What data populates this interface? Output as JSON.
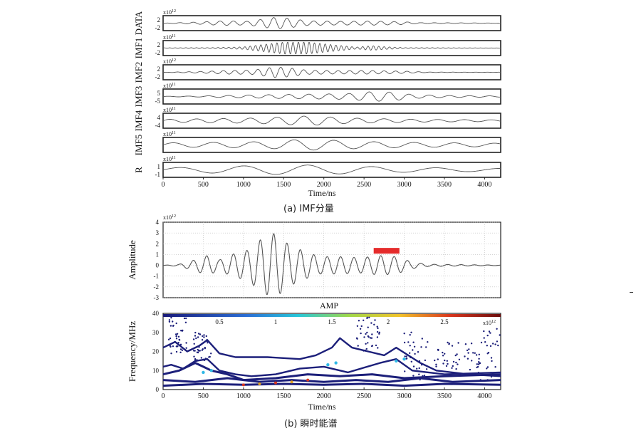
{
  "caption_a": "(a)  IMF分量",
  "caption_b": "(b)  瞬时能谱",
  "chart_data": [
    {
      "type": "line",
      "panel": "a",
      "xlabel": "Time/ns",
      "xlim": [
        0,
        4200
      ],
      "xticks": [
        0,
        500,
        1000,
        1500,
        2000,
        2500,
        3000,
        3500,
        4000
      ],
      "rows": [
        {
          "label": "DATA",
          "scale": "x10^12",
          "ylim": [
            -3,
            3
          ],
          "ticks": [
            "2",
            "-2"
          ],
          "envelope": [
            [
              0,
              0
            ],
            [
              450,
              0.5
            ],
            [
              750,
              1.0
            ],
            [
              1050,
              0.8
            ],
            [
              1400,
              2.6
            ],
            [
              1550,
              2.2
            ],
            [
              1800,
              1.0
            ],
            [
              2200,
              0.8
            ],
            [
              2600,
              0.9
            ],
            [
              3000,
              0.6
            ],
            [
              3200,
              0.2
            ],
            [
              4200,
              0.05
            ]
          ],
          "freq": 0.012
        },
        {
          "label": "IMF1",
          "scale": "x10^11",
          "ylim": [
            -3,
            3
          ],
          "ticks": [
            "2",
            "-2"
          ],
          "envelope": [
            [
              0,
              0.1
            ],
            [
              600,
              0.2
            ],
            [
              1000,
              0.5
            ],
            [
              1300,
              1.8
            ],
            [
              1500,
              2.6
            ],
            [
              1800,
              2.6
            ],
            [
              2100,
              1.5
            ],
            [
              2400,
              0.4
            ],
            [
              2600,
              1.0
            ],
            [
              2750,
              0.6
            ],
            [
              3000,
              0.2
            ],
            [
              4200,
              0.05
            ]
          ],
          "freq": 0.03
        },
        {
          "label": "IMF2",
          "scale": "x10^12",
          "ylim": [
            -3,
            3
          ],
          "ticks": [
            "2",
            "-2"
          ],
          "envelope": [
            [
              0,
              0
            ],
            [
              500,
              0.4
            ],
            [
              800,
              0.8
            ],
            [
              1100,
              0.9
            ],
            [
              1400,
              2.4
            ],
            [
              1550,
              2.0
            ],
            [
              1800,
              0.9
            ],
            [
              2200,
              0.7
            ],
            [
              2500,
              0.8
            ],
            [
              3000,
              0.5
            ],
            [
              3300,
              0.1
            ],
            [
              4200,
              0.05
            ]
          ],
          "freq": 0.014
        },
        {
          "label": "IMF3",
          "scale": "x10^11",
          "ylim": [
            -7,
            7
          ],
          "ticks": [
            "5",
            "-5"
          ],
          "envelope": [
            [
              0,
              0.2
            ],
            [
              500,
              0.6
            ],
            [
              900,
              1.2
            ],
            [
              1400,
              2.0
            ],
            [
              1900,
              2.5
            ],
            [
              2300,
              3.0
            ],
            [
              2600,
              5.0
            ],
            [
              2850,
              4.5
            ],
            [
              3100,
              2.0
            ],
            [
              3500,
              1.0
            ],
            [
              4200,
              0.6
            ]
          ],
          "freq": 0.008
        },
        {
          "label": "IMF4",
          "scale": "x10^11",
          "ylim": [
            -5,
            5
          ],
          "ticks": [
            "4",
            "-4"
          ],
          "envelope": [
            [
              0,
              1.0
            ],
            [
              600,
              1.5
            ],
            [
              1000,
              1.8
            ],
            [
              1400,
              2.5
            ],
            [
              1800,
              3.5
            ],
            [
              2000,
              3.0
            ],
            [
              2300,
              2.0
            ],
            [
              2700,
              1.5
            ],
            [
              3200,
              1.0
            ],
            [
              4200,
              0.6
            ]
          ],
          "freq": 0.006
        },
        {
          "label": "IMF5",
          "scale": "x10^11",
          "ylim": [
            -2,
            2
          ],
          "ticks": [],
          "envelope": [
            [
              0,
              0.6
            ],
            [
              800,
              0.8
            ],
            [
              1300,
              1.0
            ],
            [
              1700,
              1.6
            ],
            [
              2100,
              1.4
            ],
            [
              2500,
              1.0
            ],
            [
              3200,
              0.7
            ],
            [
              4200,
              0.5
            ]
          ],
          "freq": 0.004
        },
        {
          "label": "R",
          "scale": "x10^11",
          "ylim": [
            -1.4,
            1.4
          ],
          "ticks": [
            "1",
            "-1"
          ],
          "envelope": [
            [
              0,
              0.4
            ],
            [
              700,
              0.7
            ],
            [
              1200,
              0.9
            ],
            [
              1800,
              1.0
            ],
            [
              2300,
              0.8
            ],
            [
              3000,
              0.5
            ],
            [
              4200,
              0.3
            ]
          ],
          "freq": 0.0025
        }
      ]
    },
    {
      "type": "line",
      "panel": "b-top",
      "ylabel": "Amplitude",
      "scale": "x10^12",
      "xlim": [
        0,
        4200
      ],
      "ylim": [
        -3,
        4
      ],
      "yticks": [
        4,
        3,
        2,
        1,
        0,
        -1,
        -2,
        -3
      ],
      "marker_color": "#e52b2b",
      "marker_range": [
        2620,
        2940
      ],
      "marker_y": 1.35,
      "envelope": [
        [
          0,
          0
        ],
        [
          200,
          0.1
        ],
        [
          350,
          0.4
        ],
        [
          550,
          0.9
        ],
        [
          700,
          0.5
        ],
        [
          850,
          1.0
        ],
        [
          1050,
          1.4
        ],
        [
          1250,
          2.6
        ],
        [
          1400,
          3.0
        ],
        [
          1550,
          2.0
        ],
        [
          1750,
          1.3
        ],
        [
          1950,
          0.8
        ],
        [
          2200,
          0.8
        ],
        [
          2450,
          0.7
        ],
        [
          2700,
          0.9
        ],
        [
          2900,
          0.8
        ],
        [
          3100,
          0.3
        ],
        [
          3300,
          0.1
        ],
        [
          4200,
          0.02
        ]
      ]
    },
    {
      "type": "scatter",
      "panel": "b-bottom",
      "title": "AMP",
      "ylabel": "Frequency/MHz",
      "xlabel": "Time/ns",
      "xlim": [
        0,
        4200
      ],
      "ylim": [
        0,
        40
      ],
      "yticks": [
        0,
        10,
        20,
        30,
        40
      ],
      "xticks": [
        0,
        500,
        1000,
        1500,
        2000,
        2500,
        3000,
        3500,
        4000
      ],
      "colorbar": {
        "range": [
          0,
          3
        ],
        "ticks": [
          "0.5",
          "1",
          "1.5",
          "2",
          "2.5"
        ],
        "scale": "x10^12"
      },
      "tracks": [
        {
          "points": [
            [
              0,
              2
            ],
            [
              500,
              3
            ],
            [
              1000,
              2.5
            ],
            [
              1500,
              3
            ],
            [
              2000,
              2.5
            ],
            [
              2500,
              3
            ],
            [
              3000,
              2
            ],
            [
              3500,
              3
            ],
            [
              4200,
              2.5
            ]
          ]
        },
        {
          "points": [
            [
              0,
              5
            ],
            [
              400,
              4
            ],
            [
              800,
              6
            ],
            [
              1200,
              4
            ],
            [
              1600,
              5
            ],
            [
              2000,
              4
            ],
            [
              2400,
              5
            ],
            [
              2800,
              4
            ],
            [
              3200,
              6
            ],
            [
              3600,
              4
            ],
            [
              4200,
              5
            ]
          ]
        },
        {
          "points": [
            [
              0,
              8
            ],
            [
              200,
              10
            ],
            [
              400,
              14
            ],
            [
              500,
              12
            ],
            [
              600,
              10
            ],
            [
              800,
              8
            ],
            [
              1000,
              5
            ],
            [
              1400,
              6
            ],
            [
              1800,
              8
            ],
            [
              2200,
              7
            ],
            [
              2600,
              8
            ],
            [
              3000,
              6
            ],
            [
              3500,
              7
            ],
            [
              4200,
              8
            ]
          ]
        },
        {
          "points": [
            [
              0,
              12
            ],
            [
              100,
              13
            ],
            [
              250,
              11
            ],
            [
              400,
              15
            ],
            [
              550,
              16
            ],
            [
              700,
              10
            ],
            [
              900,
              8
            ],
            [
              1100,
              7
            ],
            [
              1400,
              8
            ],
            [
              1700,
              11
            ],
            [
              2000,
              12
            ],
            [
              2300,
              9
            ],
            [
              2700,
              14
            ],
            [
              2900,
              16
            ],
            [
              3100,
              10
            ],
            [
              3500,
              8
            ],
            [
              4200,
              9
            ]
          ]
        },
        {
          "points": [
            [
              0,
              22
            ],
            [
              150,
              25
            ],
            [
              300,
              20
            ],
            [
              450,
              23
            ],
            [
              550,
              26
            ],
            [
              700,
              19
            ],
            [
              900,
              17
            ],
            [
              1300,
              17
            ],
            [
              1700,
              16
            ],
            [
              1900,
              18
            ],
            [
              2100,
              22
            ],
            [
              2200,
              27
            ],
            [
              2350,
              22
            ],
            [
              2550,
              20
            ],
            [
              2750,
              18
            ],
            [
              2900,
              22
            ],
            [
              3050,
              18
            ],
            [
              3200,
              14
            ],
            [
              3400,
              10
            ],
            [
              3800,
              8
            ],
            [
              4200,
              7
            ]
          ]
        }
      ],
      "hot": [
        [
          1000,
          2.5
        ],
        [
          1200,
          3
        ],
        [
          1400,
          3.5
        ],
        [
          1600,
          4
        ],
        [
          1800,
          5
        ]
      ],
      "cyan": [
        [
          500,
          9
        ],
        [
          600,
          10
        ],
        [
          2900,
          15
        ],
        [
          3000,
          16
        ],
        [
          2050,
          13
        ],
        [
          2150,
          14
        ]
      ]
    }
  ]
}
